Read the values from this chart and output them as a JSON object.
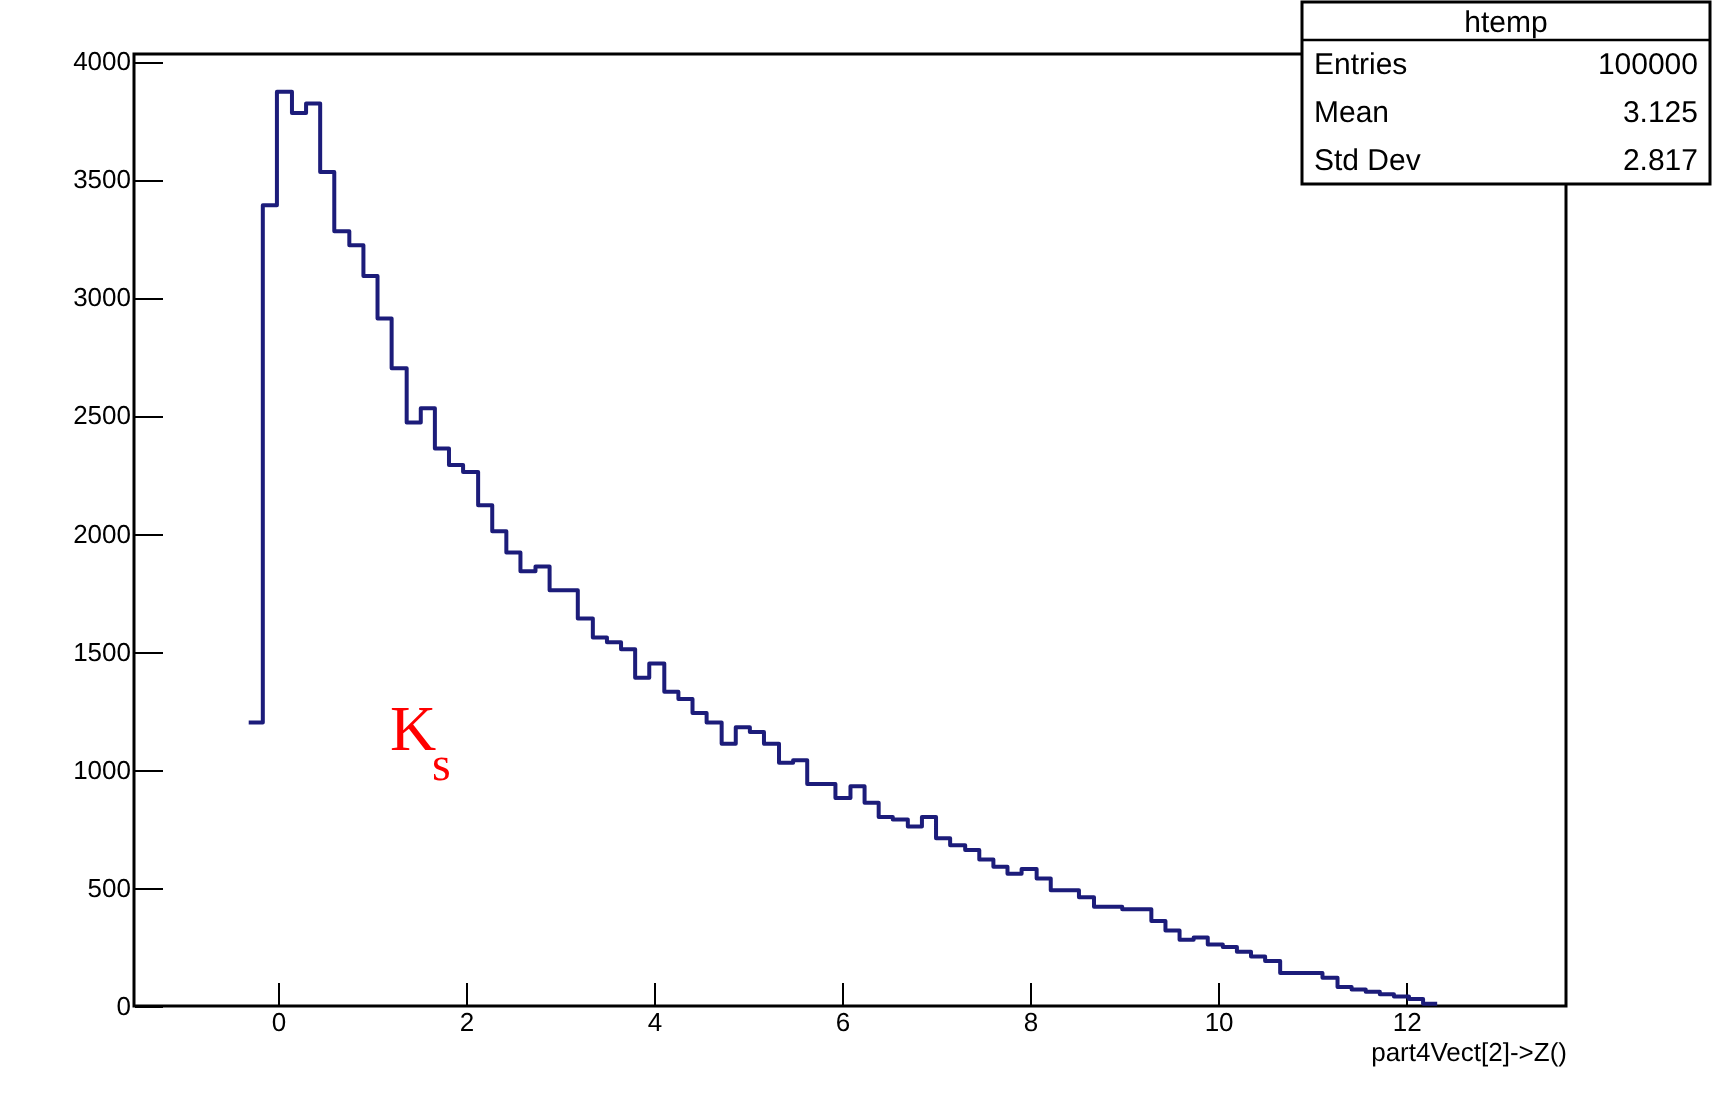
{
  "chart_data": {
    "type": "histogram",
    "xlabel": "part4Vect[2]->Z()",
    "color": "#1c1c7a",
    "bins": [
      -0.31,
      -0.16,
      -0.01,
      0.15,
      0.3,
      0.45,
      0.6,
      0.76,
      0.91,
      1.06,
      1.21,
      1.37,
      1.52,
      1.67,
      1.82,
      1.97,
      2.13,
      2.28,
      2.43,
      2.58,
      2.74,
      2.89,
      3.04,
      3.19,
      3.35,
      3.5,
      3.65,
      3.8,
      3.95,
      4.11,
      4.26,
      4.41,
      4.56,
      4.72,
      4.87,
      5.02,
      5.17,
      5.33,
      5.48,
      5.63,
      5.78,
      5.93,
      6.09,
      6.24,
      6.39,
      6.54,
      6.7,
      6.85,
      7.0,
      7.15,
      7.31,
      7.46,
      7.61,
      7.76,
      7.91,
      8.07,
      8.22,
      8.37,
      8.52,
      8.68,
      8.83,
      8.98,
      9.13,
      9.29,
      9.44,
      9.59,
      9.74,
      9.89,
      10.05,
      10.2,
      10.35,
      10.5,
      10.66,
      10.81,
      10.96,
      11.11,
      11.27,
      11.42,
      11.57,
      11.72,
      11.87,
      12.03,
      12.18,
      12.33
    ],
    "values": [
      1200,
      3390,
      3870,
      3780,
      3820,
      3530,
      3280,
      3220,
      3090,
      2910,
      2700,
      2470,
      2530,
      2360,
      2290,
      2260,
      2120,
      2010,
      1920,
      1840,
      1860,
      1760,
      1760,
      1640,
      1560,
      1540,
      1510,
      1390,
      1450,
      1330,
      1300,
      1240,
      1200,
      1110,
      1180,
      1160,
      1110,
      1030,
      1040,
      940,
      940,
      880,
      930,
      860,
      800,
      790,
      760,
      800,
      710,
      680,
      660,
      620,
      590,
      560,
      580,
      540,
      490,
      490,
      460,
      420,
      420,
      410,
      410,
      360,
      320,
      280,
      290,
      260,
      250,
      230,
      210,
      190,
      140,
      140,
      140,
      120,
      80,
      70,
      60,
      50,
      40,
      30,
      10
    ],
    "xlim": [
      -1.53,
      13.7
    ],
    "xticks": [
      0,
      2,
      4,
      6,
      8,
      10,
      12
    ],
    "ylim": [
      0,
      4030
    ],
    "yticks": [
      0,
      500,
      1000,
      1500,
      2000,
      2500,
      3000,
      3500,
      4000
    ],
    "annotations": [
      "htemp",
      "Entries",
      "100000",
      "Mean",
      "3.125",
      "Std Dev",
      "2.817",
      "K$_{s}$"
    ]
  }
}
